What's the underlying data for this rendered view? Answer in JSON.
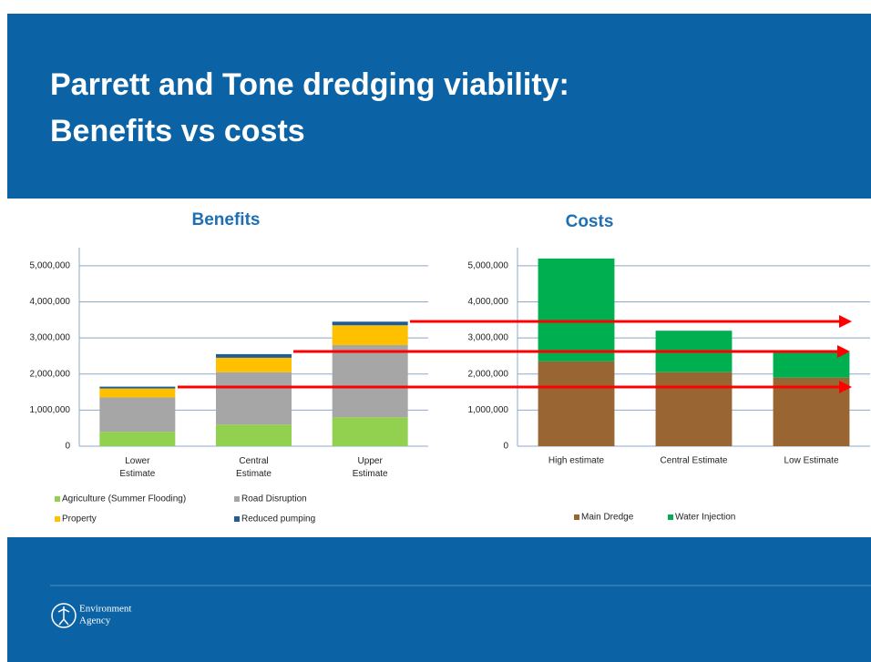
{
  "title": [
    "Parrett and Tone dredging viability:",
    "Benefits vs costs"
  ],
  "logo": [
    "Environment",
    "Agency"
  ],
  "chart_data": [
    {
      "type": "stacked_bar",
      "title": "Benefits",
      "categories": [
        "Lower Estimate",
        "Central Estimate",
        "Upper Estimate"
      ],
      "series": [
        {
          "name": "Agriculture (Summer Flooding)",
          "color": "#92d050",
          "values": [
            400000,
            600000,
            800000
          ]
        },
        {
          "name": "Road Disruption",
          "color": "#a6a6a6",
          "values": [
            950000,
            1450000,
            2000000
          ]
        },
        {
          "name": "Property",
          "color": "#ffc000",
          "values": [
            250000,
            400000,
            550000
          ]
        },
        {
          "name": "Reduced pumping",
          "color": "#1f5c99",
          "values": [
            50000,
            100000,
            100000
          ]
        }
      ],
      "ylim": [
        0,
        5500000
      ],
      "yticks": [
        0,
        {
          "value": 1000000,
          "label": "1,000,000"
        },
        {
          "value": 2000000,
          "label": "2,000,000"
        },
        {
          "value": 3000000,
          "label": "3,000,000"
        },
        {
          "value": 4000000,
          "label": "4,000,000"
        },
        {
          "value": 5000000,
          "label": "5,000,000"
        }
      ],
      "grid": true
    },
    {
      "type": "stacked_bar",
      "title": "Costs",
      "categories": [
        "High estimate",
        "Central Estimate",
        "Low Estimate"
      ],
      "series": [
        {
          "name": "Main Dredge",
          "color": "#996633",
          "values": [
            2350000,
            2050000,
            1900000
          ]
        },
        {
          "name": "Water Injection",
          "color": "#00b050",
          "values": [
            2850000,
            1150000,
            700000
          ]
        }
      ],
      "ylim": [
        0,
        5500000
      ],
      "yticks": [
        0,
        {
          "value": 1000000,
          "label": "1,000,000"
        },
        {
          "value": 2000000,
          "label": "2,000,000"
        },
        {
          "value": 3000000,
          "label": "3,000,000"
        },
        {
          "value": 4000000,
          "label": "4,000,000"
        },
        {
          "value": 5000000,
          "label": "5,000,000"
        }
      ],
      "grid": true
    }
  ]
}
